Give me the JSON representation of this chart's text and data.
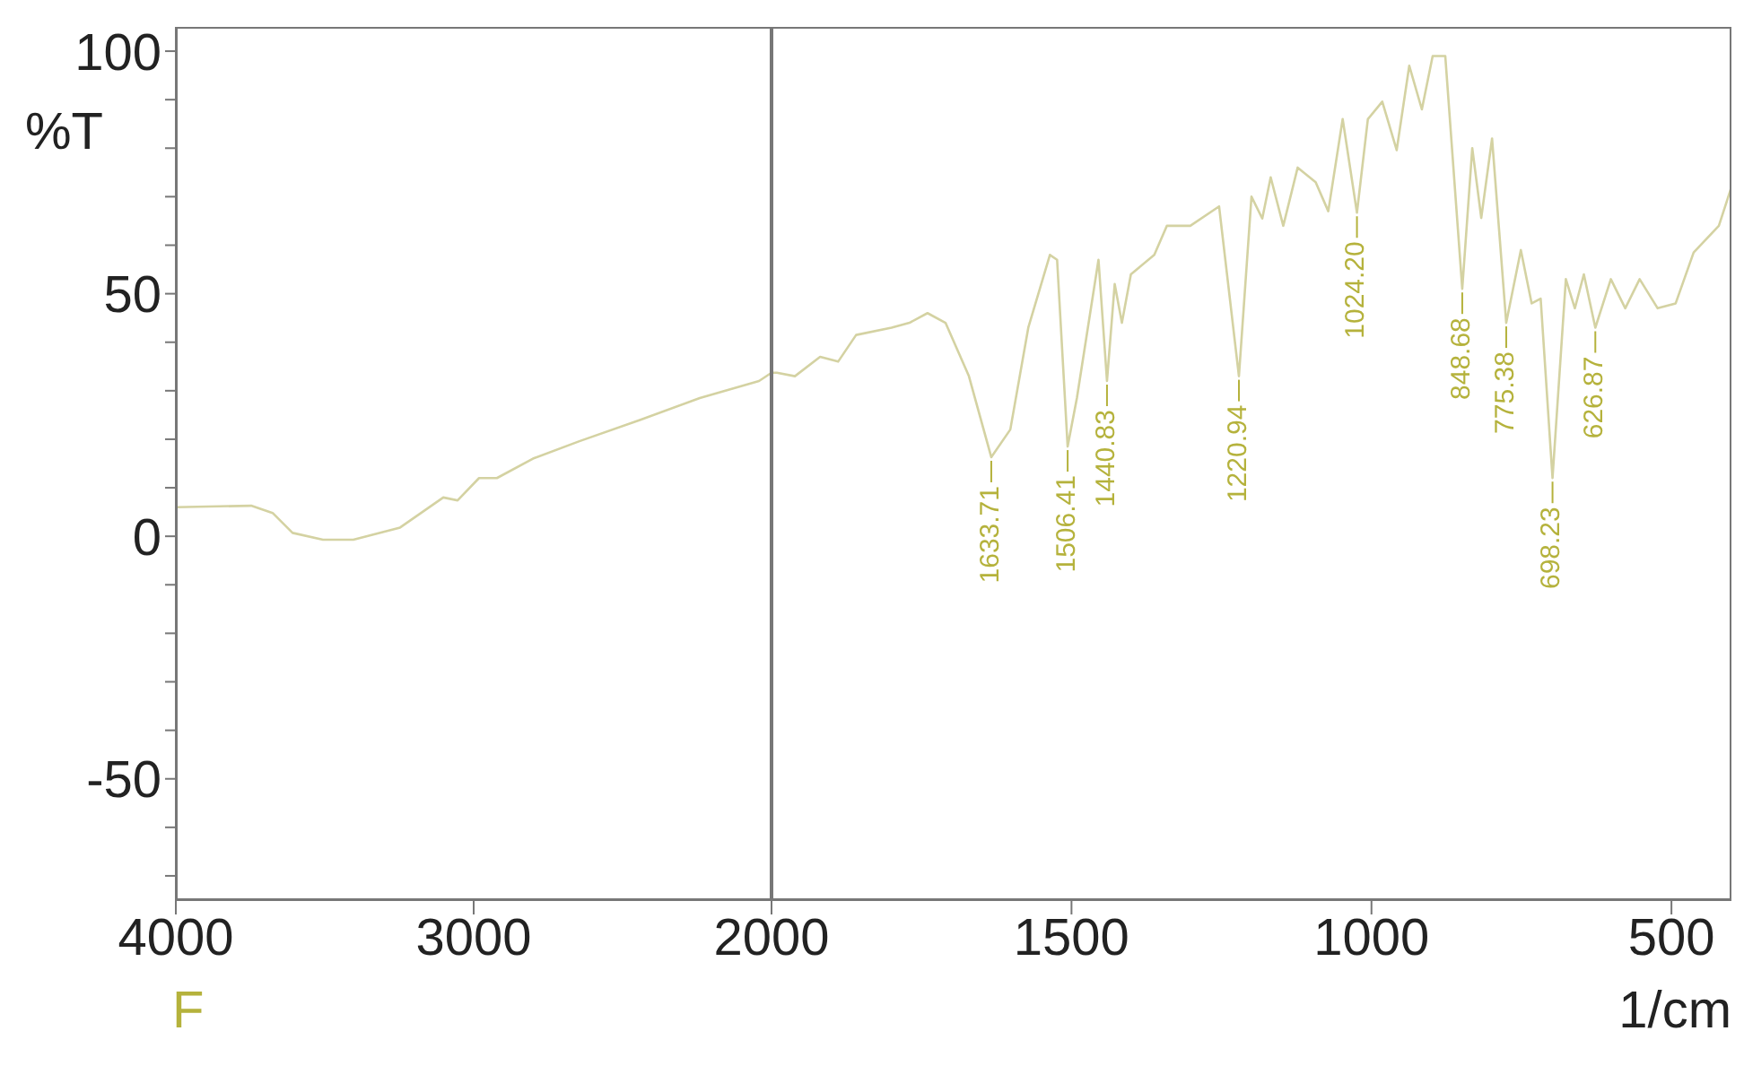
{
  "chart_data": [
    {
      "type": "line",
      "ylabel": "%T",
      "xlim": [
        4000,
        2000
      ],
      "xticks": [
        4000,
        3000,
        2000
      ],
      "ylim": [
        -75,
        105
      ],
      "yticks": [
        {
          "value": -70,
          "label": null
        },
        {
          "value": -60,
          "label": null
        },
        -50,
        {
          "value": -40,
          "label": null
        },
        {
          "value": -30,
          "label": null
        },
        {
          "value": -20,
          "label": null
        },
        {
          "value": -10,
          "label": null
        },
        0,
        {
          "value": 10,
          "label": null
        },
        {
          "value": 20,
          "label": null
        },
        {
          "value": 30,
          "label": null
        },
        {
          "value": 40,
          "label": null
        },
        50,
        {
          "value": 60,
          "label": null
        },
        {
          "value": 70,
          "label": null
        },
        {
          "value": 80,
          "label": null
        },
        {
          "value": 90,
          "label": null
        },
        100
      ],
      "annotations": [
        "F"
      ],
      "series": [
        {
          "color": "#d4d2a2",
          "x": [
            4000,
            3747,
            3675,
            3608,
            3506,
            3404,
            3247,
            3102,
            3054,
            2982,
            2922,
            2801,
            2645,
            2440,
            2241,
            2042,
            2000
          ],
          "values": [
            6,
            6.3,
            4.8,
            0.7,
            -0.7,
            -0.7,
            1.8,
            8,
            7.4,
            12,
            12,
            16,
            19.6,
            24,
            28.5,
            32,
            33.7
          ]
        }
      ]
    },
    {
      "type": "line",
      "xlabel": "1/cm",
      "xlim": [
        2000,
        400
      ],
      "xticks": [
        1500,
        1000,
        500
      ],
      "ylim": [
        -75,
        105
      ],
      "tick_labels": "x",
      "annotations": [
        {
          "text": "1633.71",
          "x": 1633.71,
          "y": 16.3
        },
        {
          "text": "1506.41",
          "x": 1506.41,
          "y": 18.5
        },
        {
          "text": "1440.83",
          "x": 1440.83,
          "y": 32
        },
        {
          "text": "1220.94",
          "x": 1220.94,
          "y": 33
        },
        {
          "text": "1024.20",
          "x": 1024.2,
          "y": 66.7
        },
        {
          "text": "848.68",
          "x": 848.68,
          "y": 51
        },
        {
          "text": "775.38",
          "x": 775.38,
          "y": 44
        },
        {
          "text": "698.23",
          "x": 698.23,
          "y": 12
        },
        {
          "text": "626.87",
          "x": 626.87,
          "y": 43
        }
      ],
      "series": [
        {
          "color": "#d4d2a2",
          "x": [
            2000,
            1991,
            1961,
            1919,
            1889,
            1859,
            1800,
            1770,
            1740,
            1710,
            1671,
            1633.71,
            1602,
            1572,
            1536,
            1524,
            1506.41,
            1491,
            1455,
            1440.83,
            1428,
            1416,
            1401,
            1362,
            1341,
            1302,
            1254,
            1220.94,
            1200,
            1182,
            1168,
            1147,
            1123,
            1093,
            1072,
            1048,
            1024.2,
            1006,
            982,
            958,
            937,
            916,
            898,
            877,
            848.68,
            832,
            817,
            799,
            775.38,
            751,
            733,
            718,
            698.23,
            676,
            661,
            646,
            626.87,
            601,
            577,
            553,
            523,
            493,
            463,
            421,
            400
          ],
          "values": [
            33.7,
            33.7,
            33,
            37,
            36,
            41.5,
            43,
            44,
            46,
            44,
            33,
            16.3,
            22,
            43,
            58,
            57,
            18.5,
            28.5,
            57,
            32,
            52,
            44,
            54,
            58,
            64,
            64,
            68,
            33,
            70,
            65.5,
            74,
            64,
            76,
            73,
            67,
            86,
            66.7,
            86,
            89.6,
            79.6,
            97,
            88,
            99,
            99,
            51,
            80,
            65.6,
            82,
            44,
            59,
            48,
            49,
            12,
            53,
            47,
            54,
            43,
            53,
            47,
            53,
            47,
            48,
            58.5,
            64,
            72
          ]
        }
      ]
    }
  ]
}
